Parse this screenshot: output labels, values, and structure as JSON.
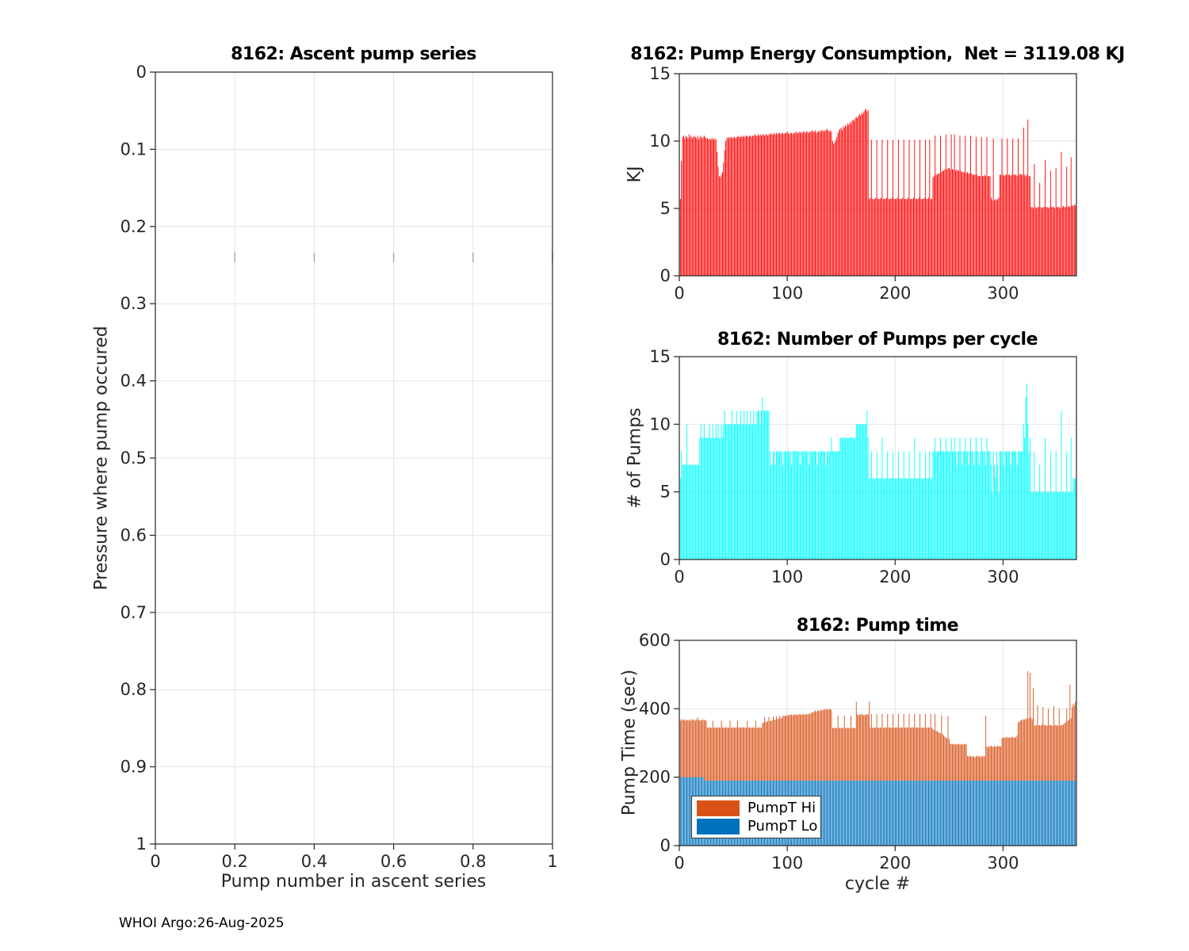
{
  "footer": {
    "text": "WHOI Argo:26-Aug-2025"
  },
  "legend": {
    "items": [
      "PumpT Hi",
      "PumpT Lo"
    ]
  },
  "chart_data": [
    {
      "id": "ascent",
      "type": "scatter",
      "title": "8162: Ascent pump series",
      "xlabel": "Pump number in ascent series",
      "ylabel": "Pressure where pump occured",
      "xlim": [
        0,
        1
      ],
      "ylim": [
        0,
        1
      ],
      "y_reversed": true,
      "grid": true,
      "xticks": [
        0,
        0.2,
        0.4,
        0.6,
        0.8,
        1
      ],
      "yticks": [
        0,
        0.1,
        0.2,
        0.3,
        0.4,
        0.5,
        0.6,
        0.7,
        0.8,
        0.9,
        1
      ],
      "stray_tick_xs": [
        0.2,
        0.4,
        0.6,
        0.8,
        1
      ],
      "stray_tick_y": 0.24,
      "points": []
    },
    {
      "id": "energy",
      "type": "bar",
      "title": "8162: Pump Energy Consumption,  Net = 3119.08 KJ",
      "net_kj": 3119.08,
      "xlabel": "",
      "ylabel": "KJ",
      "xlim": [
        0,
        368
      ],
      "ylim": [
        0,
        15
      ],
      "grid": true,
      "xticks": [
        0,
        100,
        200,
        300
      ],
      "yticks": [
        0,
        5,
        10,
        15
      ],
      "bar_color": "#ff0000",
      "values": [
        5.7,
        8.5,
        10.3,
        10.4,
        10.2,
        10.4,
        10.3,
        10.2,
        10.5,
        10.3,
        10.4,
        10.2,
        10.3,
        10.4,
        10.3,
        10.2,
        10.4,
        10.1,
        10.3,
        10.4,
        10.2,
        10.3,
        10.4,
        10.3,
        10.2,
        10.2,
        10.1,
        10.2,
        10.1,
        10.2,
        10.2,
        10.1,
        10.2,
        10.1,
        9.2,
        8.1,
        7.4,
        7.3,
        7.5,
        7.7,
        8.4,
        9.3,
        10.0,
        10.2,
        10.3,
        10.2,
        10.3,
        10.3,
        10.2,
        10.3,
        10.3,
        10.2,
        10.3,
        10.3,
        10.4,
        10.3,
        10.3,
        10.4,
        10.3,
        10.4,
        10.3,
        10.4,
        10.4,
        10.3,
        10.4,
        10.4,
        10.3,
        10.4,
        10.4,
        10.5,
        10.4,
        10.4,
        10.5,
        10.4,
        10.5,
        10.4,
        10.5,
        10.5,
        10.4,
        10.5,
        10.5,
        10.4,
        10.5,
        10.5,
        10.6,
        10.5,
        10.5,
        10.6,
        10.5,
        10.6,
        10.5,
        10.6,
        10.6,
        10.5,
        10.6,
        10.6,
        10.5,
        10.6,
        10.6,
        10.7,
        10.6,
        10.5,
        10.6,
        10.6,
        10.5,
        10.6,
        10.6,
        10.7,
        10.6,
        10.6,
        10.7,
        10.6,
        10.7,
        10.6,
        10.7,
        10.7,
        10.6,
        10.7,
        10.7,
        10.6,
        10.7,
        10.7,
        10.8,
        10.7,
        10.7,
        10.8,
        10.6,
        10.7,
        10.7,
        10.8,
        10.7,
        10.8,
        10.8,
        10.7,
        10.8,
        10.8,
        10.9,
        10.8,
        10.7,
        10.8,
        10.7,
        10.0,
        9.8,
        9.9,
        10.1,
        10.3,
        10.6,
        10.8,
        10.9,
        11.0,
        10.8,
        11.1,
        11.0,
        11.2,
        11.1,
        11.3,
        11.2,
        11.4,
        11.3,
        11.5,
        11.6,
        11.5,
        11.7,
        11.8,
        11.7,
        11.9,
        12.0,
        11.9,
        12.1,
        12.0,
        12.2,
        12.3,
        12.4,
        12.2,
        12.3,
        5.7,
        5.8,
        10.1,
        5.7,
        5.7,
        5.7,
        5.8,
        10.1,
        5.7,
        5.7,
        5.7,
        5.8,
        10.1,
        5.7,
        5.7,
        5.7,
        5.8,
        10.1,
        5.7,
        5.7,
        5.7,
        5.8,
        10.1,
        5.7,
        5.7,
        5.7,
        5.8,
        10.1,
        5.7,
        5.7,
        5.7,
        5.8,
        10.1,
        5.7,
        5.7,
        5.7,
        5.8,
        10.1,
        5.7,
        5.7,
        5.7,
        5.8,
        10.1,
        5.7,
        5.7,
        5.7,
        5.8,
        10.1,
        5.7,
        5.7,
        5.7,
        5.8,
        10.1,
        5.7,
        5.7,
        5.8,
        10.1,
        5.7,
        5.7,
        7.3,
        7.4,
        10.4,
        7.5,
        7.5,
        7.6,
        7.6,
        10.4,
        7.7,
        7.8,
        7.8,
        7.9,
        10.5,
        7.9,
        8.0,
        8.0,
        7.9,
        10.5,
        7.9,
        7.9,
        10.5,
        7.8,
        7.9,
        7.8,
        7.8,
        10.4,
        7.8,
        7.7,
        7.7,
        7.7,
        10.4,
        7.6,
        7.7,
        7.6,
        7.6,
        10.4,
        7.6,
        7.5,
        7.5,
        7.5,
        10.3,
        7.5,
        7.4,
        7.4,
        7.4,
        10.3,
        7.4,
        7.4,
        7.5,
        7.4,
        10.3,
        7.4,
        7.4,
        7.4,
        5.8,
        5.6,
        10.2,
        5.6,
        5.7,
        5.6,
        5.7,
        5.8,
        7.5,
        7.5,
        10.2,
        7.5,
        7.4,
        7.5,
        7.5,
        10.2,
        7.5,
        7.5,
        7.4,
        7.5,
        10.2,
        7.5,
        7.5,
        7.5,
        7.4,
        10.2,
        7.5,
        7.6,
        7.5,
        7.5,
        11.0,
        7.5,
        7.4,
        7.5,
        11.6,
        7.4,
        7.4,
        5.1,
        5.1,
        5.0,
        8.3,
        5.1,
        5.0,
        5.1,
        5.1,
        6.9,
        5.1,
        5.0,
        5.1,
        5.1,
        8.6,
        5.1,
        5.1,
        5.0,
        5.1,
        7.8,
        5.1,
        5.1,
        5.1,
        5.0,
        8.0,
        5.1,
        5.1,
        5.1,
        5.0,
        9.2,
        5.1,
        5.2,
        5.1,
        5.1,
        8.1,
        5.1,
        5.2,
        5.1,
        8.8,
        5.2,
        5.2,
        5.3,
        5.2
      ]
    },
    {
      "id": "pumps",
      "type": "bar",
      "title": "8162: Number of Pumps per cycle",
      "xlabel": "",
      "ylabel": "# of Pumps",
      "xlim": [
        0,
        368
      ],
      "ylim": [
        0,
        15
      ],
      "grid": true,
      "xticks": [
        0,
        100,
        200,
        300
      ],
      "yticks": [
        0,
        5,
        10,
        15
      ],
      "bar_color": "#00ffff",
      "values": [
        6,
        8,
        7,
        7,
        7,
        7,
        10,
        7,
        7,
        7,
        7,
        7,
        7,
        7,
        7,
        7,
        7,
        7,
        9,
        10,
        9,
        9,
        10,
        9,
        9,
        9,
        9,
        10,
        9,
        9,
        10,
        9,
        9,
        10,
        9,
        10,
        9,
        9,
        10,
        9,
        10,
        11,
        10,
        10,
        10,
        10,
        10,
        10,
        11,
        10,
        10,
        10,
        11,
        10,
        10,
        10,
        11,
        10,
        10,
        11,
        10,
        10,
        11,
        10,
        10,
        11,
        10,
        10,
        11,
        10,
        10,
        11,
        11,
        11,
        10,
        11,
        12,
        11,
        11,
        11,
        11,
        11,
        11,
        8,
        7,
        7,
        8,
        8,
        7,
        8,
        8,
        8,
        8,
        8,
        8,
        7,
        8,
        8,
        8,
        8,
        8,
        8,
        8,
        7,
        8,
        8,
        8,
        8,
        8,
        8,
        8,
        7,
        8,
        8,
        8,
        8,
        8,
        8,
        8,
        7,
        8,
        8,
        8,
        8,
        8,
        8,
        8,
        7,
        8,
        8,
        8,
        8,
        8,
        8,
        8,
        7,
        8,
        8,
        8,
        8,
        9,
        8,
        8,
        8,
        8,
        8,
        8,
        8,
        9,
        9,
        9,
        9,
        9,
        9,
        9,
        9,
        9,
        9,
        9,
        9,
        9,
        9,
        9,
        10,
        10,
        10,
        10,
        10,
        10,
        10,
        10,
        10,
        10,
        11,
        9,
        6,
        6,
        8,
        6,
        6,
        6,
        6,
        8,
        6,
        6,
        6,
        6,
        9,
        6,
        6,
        6,
        6,
        8,
        6,
        6,
        6,
        6,
        8,
        6,
        6,
        6,
        6,
        8,
        6,
        6,
        6,
        6,
        8,
        6,
        6,
        6,
        6,
        8,
        6,
        6,
        6,
        6,
        9,
        6,
        6,
        6,
        6,
        8,
        6,
        6,
        6,
        6,
        8,
        6,
        6,
        6,
        8,
        6,
        6,
        8,
        8,
        9,
        8,
        8,
        8,
        8,
        9,
        8,
        8,
        8,
        8,
        9,
        8,
        8,
        8,
        8,
        9,
        8,
        8,
        9,
        8,
        7,
        8,
        8,
        9,
        8,
        7,
        8,
        8,
        9,
        8,
        8,
        7,
        8,
        9,
        8,
        8,
        7,
        8,
        9,
        8,
        8,
        7,
        8,
        9,
        8,
        8,
        8,
        7,
        9,
        8,
        8,
        8,
        7,
        5,
        8,
        7,
        6,
        8,
        7,
        5,
        8,
        8,
        8,
        8,
        7,
        8,
        8,
        8,
        8,
        8,
        7,
        8,
        8,
        8,
        8,
        8,
        7,
        8,
        8,
        8,
        8,
        8,
        10,
        9,
        12,
        13,
        10,
        8,
        9,
        5,
        5,
        5,
        8,
        5,
        5,
        5,
        5,
        7,
        5,
        5,
        5,
        5,
        9,
        5,
        5,
        5,
        5,
        8,
        5,
        5,
        5,
        5,
        8,
        5,
        5,
        5,
        5,
        11,
        5,
        5,
        5,
        5,
        8,
        5,
        5,
        5,
        9,
        5,
        6,
        6,
        6
      ]
    },
    {
      "id": "time",
      "type": "stacked-bar",
      "title": "8162: Pump time",
      "xlabel": "cycle #",
      "ylabel": "Pump Time (sec)",
      "xlim": [
        0,
        368
      ],
      "ylim": [
        0,
        600
      ],
      "grid": true,
      "xticks": [
        0,
        100,
        200,
        300
      ],
      "yticks": [
        0,
        200,
        400,
        600
      ],
      "legend": [
        {
          "label": "PumpT Hi",
          "color": "#d95319"
        },
        {
          "label": "PumpT Lo",
          "color": "#0072bd"
        }
      ],
      "series_lo_runs": [
        [
          200,
          22
        ],
        [
          190,
          345
        ]
      ],
      "series_total": [
        365,
        370,
        368,
        366,
        370,
        365,
        368,
        366,
        369,
        365,
        367,
        370,
        366,
        368,
        365,
        369,
        375,
        366,
        368,
        365,
        367,
        369,
        366,
        368,
        365,
        345,
        344,
        346,
        345,
        344,
        365,
        345,
        346,
        344,
        345,
        346,
        345,
        344,
        365,
        346,
        345,
        344,
        346,
        345,
        344,
        345,
        365,
        344,
        346,
        345,
        345,
        344,
        346,
        365,
        345,
        344,
        346,
        345,
        345,
        346,
        344,
        345,
        365,
        344,
        346,
        345,
        344,
        345,
        346,
        345,
        365,
        344,
        345,
        346,
        345,
        344,
        358,
        360,
        375,
        361,
        362,
        363,
        376,
        364,
        365,
        366,
        377,
        367,
        368,
        378,
        370,
        371,
        379,
        372,
        374,
        380,
        378,
        380,
        379,
        382,
        380,
        383,
        381,
        384,
        380,
        383,
        382,
        384,
        381,
        383,
        385,
        382,
        384,
        383,
        385,
        382,
        384,
        385,
        383,
        386,
        384,
        388,
        390,
        389,
        392,
        395,
        391,
        394,
        396,
        393,
        397,
        395,
        398,
        396,
        399,
        400,
        397,
        399,
        398,
        400,
        396,
        344,
        343,
        345,
        344,
        343,
        380,
        344,
        345,
        343,
        344,
        345,
        380,
        343,
        344,
        345,
        344,
        343,
        380,
        344,
        345,
        344,
        343,
        420,
        383,
        381,
        384,
        382,
        385,
        383,
        380,
        384,
        382,
        385,
        383,
        422,
        345,
        385,
        344,
        346,
        345,
        344,
        385,
        345,
        344,
        346,
        345,
        385,
        344,
        345,
        346,
        344,
        385,
        345,
        346,
        344,
        345,
        385,
        344,
        345,
        345,
        346,
        385,
        344,
        345,
        346,
        344,
        385,
        345,
        344,
        346,
        345,
        385,
        344,
        345,
        345,
        346,
        385,
        344,
        346,
        345,
        344,
        385,
        345,
        344,
        346,
        345,
        385,
        344,
        345,
        346,
        344,
        385,
        345,
        340,
        338,
        385,
        336,
        334,
        332,
        330,
        328,
        380,
        326,
        322,
        318,
        316,
        314,
        378,
        312,
        298,
        297,
        296,
        298,
        296,
        295,
        297,
        296,
        298,
        295,
        296,
        297,
        295,
        296,
        298,
        296,
        262,
        260,
        263,
        261,
        259,
        262,
        260,
        258,
        261,
        263,
        260,
        262,
        259,
        261,
        260,
        262,
        261,
        380,
        290,
        288,
        291,
        289,
        292,
        290,
        288,
        291,
        290,
        289,
        292,
        290,
        291,
        289,
        315,
        316,
        314,
        317,
        315,
        318,
        316,
        315,
        317,
        316,
        318,
        315,
        316,
        317,
        322,
        360,
        362,
        365,
        368,
        366,
        370,
        368,
        372,
        370,
        510,
        372,
        505,
        374,
        370,
        460,
        352,
        350,
        353,
        410,
        351,
        352,
        350,
        354,
        405,
        352,
        351,
        353,
        350,
        400,
        352,
        353,
        351,
        350,
        408,
        352,
        353,
        350,
        352,
        400,
        351,
        353,
        352,
        354,
        358,
        360,
        400,
        365,
        368,
        470,
        372,
        405,
        415,
        410,
        420
      ]
    }
  ]
}
